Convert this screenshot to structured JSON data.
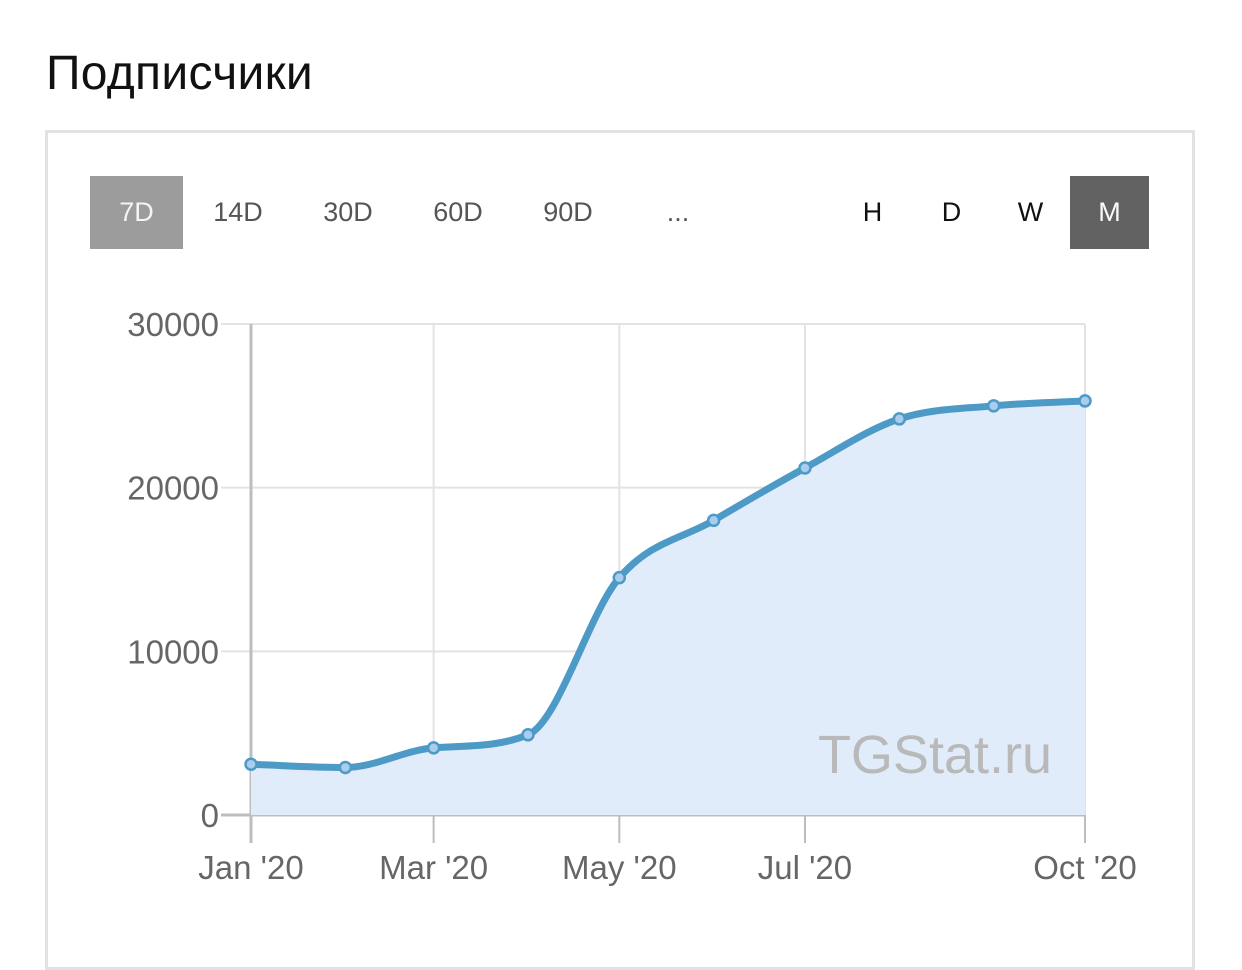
{
  "page": {
    "title": "Подписчики"
  },
  "range_buttons": [
    {
      "label": "7D",
      "active": true
    },
    {
      "label": "14D",
      "active": false
    },
    {
      "label": "30D",
      "active": false
    },
    {
      "label": "60D",
      "active": false
    },
    {
      "label": "90D",
      "active": false
    },
    {
      "label": "...",
      "active": false
    }
  ],
  "granularity_buttons": [
    {
      "label": "H",
      "active": false
    },
    {
      "label": "D",
      "active": false
    },
    {
      "label": "W",
      "active": false
    },
    {
      "label": "M",
      "active": true
    }
  ],
  "watermark": "TGStat.ru",
  "colors": {
    "line": "#4d9ac6",
    "area": "#e1ecfb",
    "point_fill": "#a8cdee",
    "grid": "#e3e3e3",
    "axis": "#bdbdbd"
  },
  "chart_data": {
    "type": "area",
    "title": "",
    "xlabel": "",
    "ylabel": "",
    "x": [
      "2020-01",
      "2020-02",
      "2020-03",
      "2020-04",
      "2020-05",
      "2020-06",
      "2020-07",
      "2020-08",
      "2020-09",
      "2020-10"
    ],
    "series": [
      {
        "values": [
          3100,
          2900,
          4100,
          4900,
          14500,
          18000,
          21200,
          24200,
          25000,
          25300
        ]
      }
    ],
    "x_ticks": [
      {
        "x": "2020-01",
        "label": "Jan '20"
      },
      {
        "x": "2020-03",
        "label": "Mar '20"
      },
      {
        "x": "2020-05",
        "label": "May '20"
      },
      {
        "x": "2020-07",
        "label": "Jul '20"
      },
      {
        "x": "2020-10",
        "label": "Oct '20"
      }
    ],
    "y_ticks": [
      {
        "value": 0,
        "label": "0"
      },
      {
        "value": 10000,
        "label": "10000"
      },
      {
        "value": 20000,
        "label": "20000"
      },
      {
        "value": 30000,
        "label": "30000"
      }
    ],
    "ylim": [
      0,
      30000
    ],
    "grid": true,
    "legend": "none"
  }
}
